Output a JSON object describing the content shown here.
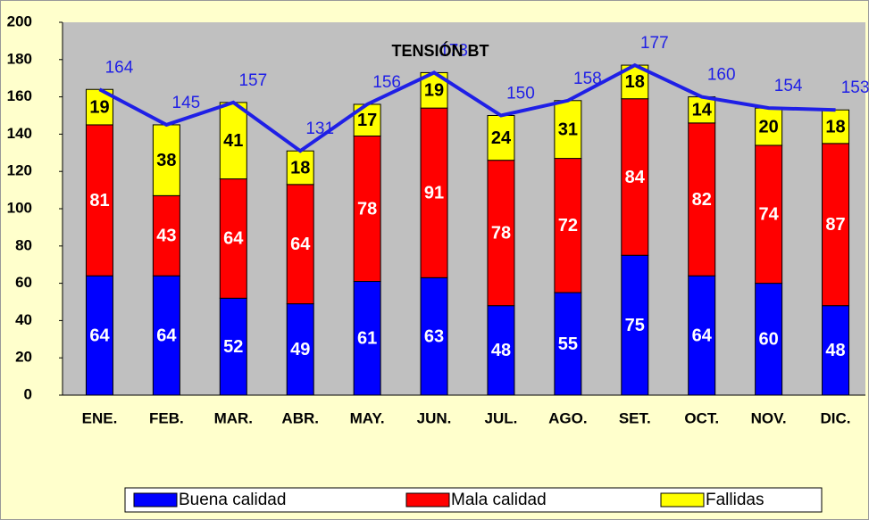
{
  "chart_data": {
    "type": "stacked-bar-line",
    "title": "TENSIÓN BT",
    "categories": [
      "ENE.",
      "FEB.",
      "MAR.",
      "ABR.",
      "MAY.",
      "JUN.",
      "JUL.",
      "AGO.",
      "SET.",
      "OCT.",
      "NOV.",
      "DIC."
    ],
    "series": [
      {
        "name": "Buena calidad",
        "color": "#0000ff",
        "label_color": "#ffffff",
        "values": [
          64,
          64,
          52,
          49,
          61,
          63,
          48,
          55,
          75,
          64,
          60,
          48
        ]
      },
      {
        "name": "Mala calidad",
        "color": "#ff0000",
        "label_color": "#ffffff",
        "values": [
          81,
          43,
          64,
          64,
          78,
          91,
          78,
          72,
          84,
          82,
          74,
          87
        ]
      },
      {
        "name": "Fallidas",
        "color": "#ffff00",
        "label_color": "#000000",
        "values": [
          19,
          38,
          41,
          18,
          17,
          19,
          24,
          31,
          18,
          14,
          20,
          18
        ]
      }
    ],
    "totals": {
      "color": "#1f1fe6",
      "values": [
        164,
        145,
        157,
        131,
        156,
        173,
        150,
        158,
        177,
        160,
        154,
        153
      ]
    },
    "ylim": [
      0,
      200
    ],
    "yticks": [
      0,
      20,
      40,
      60,
      80,
      100,
      120,
      140,
      160,
      180,
      200
    ],
    "grid": false
  }
}
